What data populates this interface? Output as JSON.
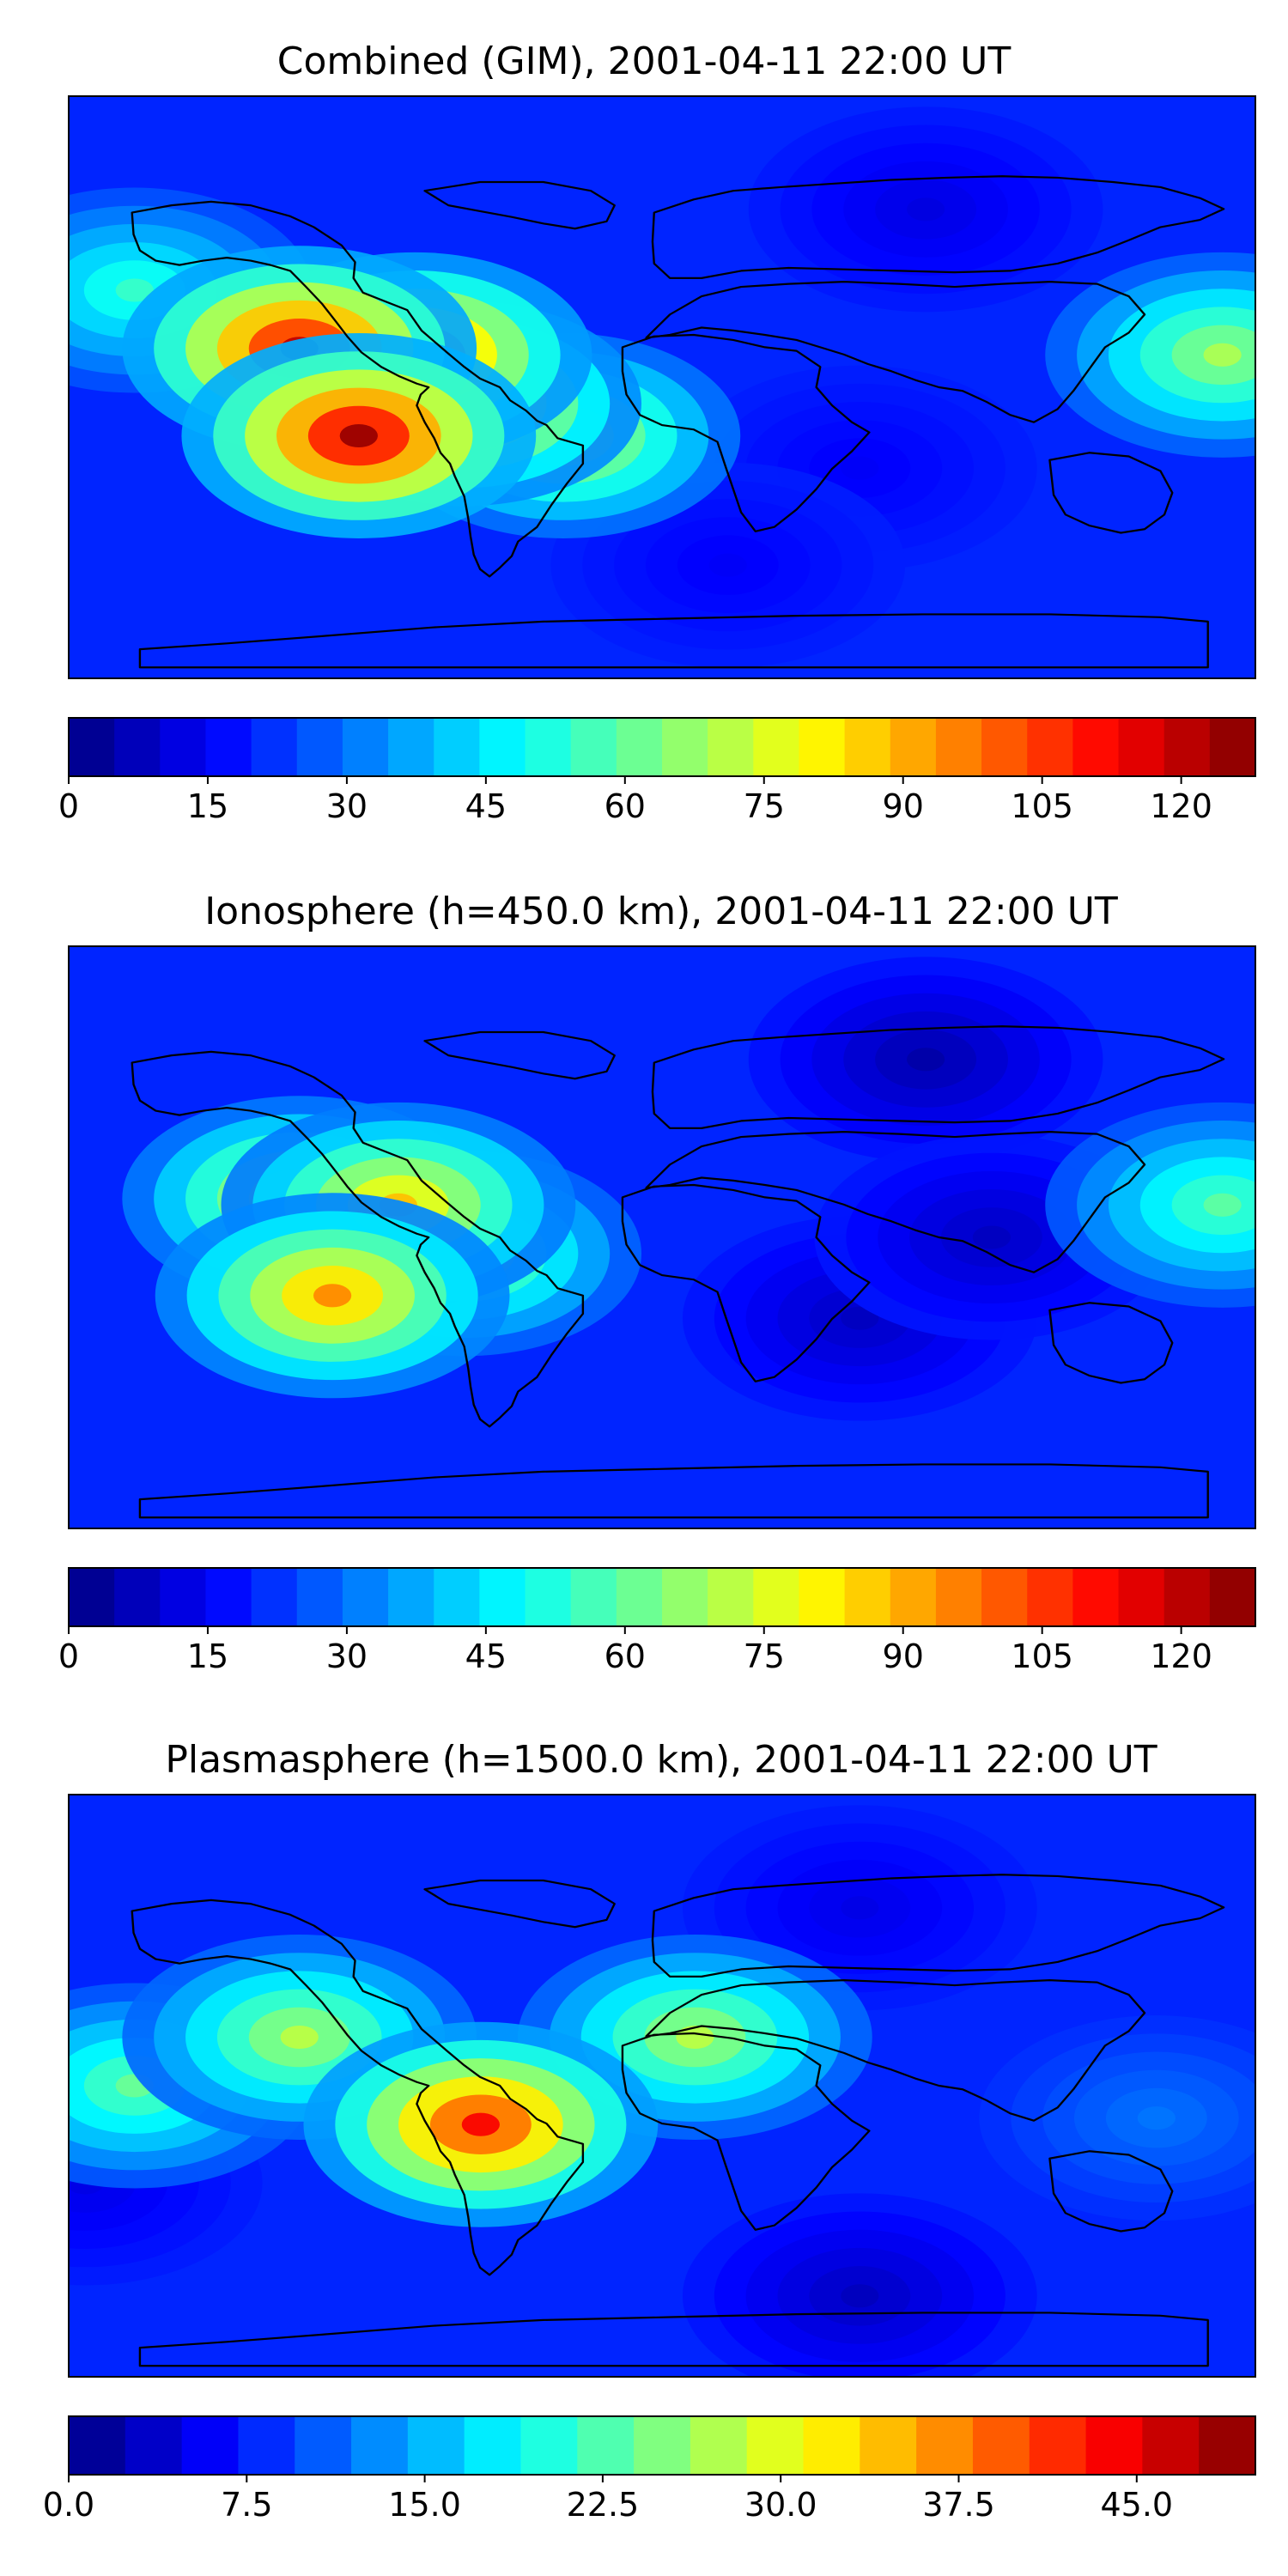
{
  "chart_data": [
    {
      "type": "heatmap",
      "title": "Combined (GIM), 2001-04-11 22:00 UT",
      "colormap": "jet",
      "colorbar": {
        "min": 0,
        "max": 128,
        "levels": 26,
        "ticks": [
          0,
          15,
          30,
          45,
          60,
          75,
          90,
          105,
          120
        ],
        "tick_labels": [
          "0",
          "15",
          "30",
          "45",
          "60",
          "75",
          "90",
          "105",
          "120"
        ]
      },
      "grid": false,
      "features": [
        {
          "lon": -110,
          "lat": 12,
          "value": 120
        },
        {
          "lon": -92,
          "lat": -15,
          "value": 125
        },
        {
          "lon": -60,
          "lat": -5,
          "value": 100
        },
        {
          "lon": -75,
          "lat": 10,
          "value": 110
        },
        {
          "lon": -30,
          "lat": -15,
          "value": 80
        },
        {
          "lon": 170,
          "lat": 10,
          "value": 70
        },
        {
          "lon": -160,
          "lat": 30,
          "value": 55
        },
        {
          "lon": 60,
          "lat": -25,
          "value": 15
        },
        {
          "lon": 80,
          "lat": 55,
          "value": 12
        },
        {
          "lon": 20,
          "lat": -55,
          "value": 15
        }
      ]
    },
    {
      "type": "heatmap",
      "title": "Ionosphere  (h=450.0 km), 2001-04-11 22:00 UT",
      "colormap": "jet",
      "colorbar": {
        "min": 0,
        "max": 128,
        "levels": 26,
        "ticks": [
          0,
          15,
          30,
          45,
          60,
          75,
          90,
          105,
          120
        ],
        "tick_labels": [
          "0",
          "15",
          "30",
          "45",
          "60",
          "75",
          "90",
          "105",
          "120"
        ]
      },
      "grid": false,
      "features": [
        {
          "lon": -110,
          "lat": 12,
          "value": 85
        },
        {
          "lon": -100,
          "lat": -18,
          "value": 95
        },
        {
          "lon": -80,
          "lat": 10,
          "value": 88
        },
        {
          "lon": -60,
          "lat": -5,
          "value": 70
        },
        {
          "lon": 170,
          "lat": 10,
          "value": 60
        },
        {
          "lon": 60,
          "lat": -25,
          "value": 8
        },
        {
          "lon": 80,
          "lat": 55,
          "value": 5
        },
        {
          "lon": 100,
          "lat": 0,
          "value": 8
        }
      ]
    },
    {
      "type": "heatmap",
      "title": "Plasmasphere (h=1500.0 km), 2001-04-11 22:00 UT",
      "colormap": "jet",
      "colorbar": {
        "min": 0,
        "max": 50,
        "levels": 21,
        "ticks": [
          0.0,
          7.5,
          15.0,
          22.5,
          30.0,
          37.5,
          45.0
        ],
        "tick_labels": [
          "0.0",
          "7.5",
          "15.0",
          "22.5",
          "30.0",
          "37.5",
          "45.0"
        ]
      },
      "grid": false,
      "features": [
        {
          "lon": -55,
          "lat": -12,
          "value": 44
        },
        {
          "lon": -110,
          "lat": 15,
          "value": 28
        },
        {
          "lon": 10,
          "lat": 15,
          "value": 28
        },
        {
          "lon": -160,
          "lat": 0,
          "value": 24
        },
        {
          "lon": 150,
          "lat": -10,
          "value": 12
        },
        {
          "lon": 60,
          "lat": 55,
          "value": 5
        },
        {
          "lon": 60,
          "lat": -65,
          "value": 3
        },
        {
          "lon": -175,
          "lat": -30,
          "value": 5
        }
      ]
    }
  ]
}
